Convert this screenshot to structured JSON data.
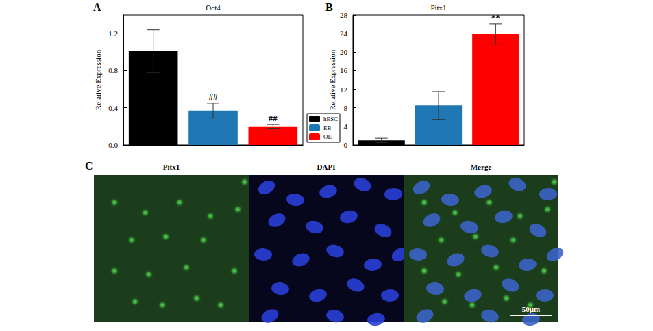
{
  "chart_data": [
    {
      "type": "bar",
      "panel": "A",
      "y_label": "Relative Expression",
      "categories": [
        "Oct4"
      ],
      "series": [
        {
          "name": "hESC",
          "color": "#000000",
          "values": [
            1.01
          ],
          "errors": [
            0.23
          ]
        },
        {
          "name": "EB",
          "color": "#1f77b4",
          "values": [
            0.37
          ],
          "errors": [
            0.08
          ]
        },
        {
          "name": "OE",
          "color": "#ff0000",
          "values": [
            0.2
          ],
          "errors": [
            0.02
          ]
        }
      ],
      "annotations": [
        {
          "series": "EB",
          "text": "##"
        },
        {
          "series": "OE",
          "text": "##"
        }
      ],
      "ylim": [
        0,
        1.4
      ],
      "yticks": [
        {
          "value": 0,
          "label": "0.0"
        },
        0.4,
        0.8,
        1.2
      ],
      "legend": "right"
    },
    {
      "type": "bar",
      "panel": "B",
      "y_label": "Relative Expression",
      "categories": [
        "Pitx1"
      ],
      "series": [
        {
          "name": "hESC",
          "color": "#000000",
          "values": [
            1.0
          ],
          "errors": [
            0.45
          ]
        },
        {
          "name": "EB",
          "color": "#1f77b4",
          "values": [
            8.5
          ],
          "errors": [
            3.0
          ]
        },
        {
          "name": "OE",
          "color": "#ff0000",
          "values": [
            23.9
          ],
          "errors": [
            2.2
          ]
        }
      ],
      "annotations": [
        {
          "series": "OE",
          "text": "**"
        }
      ],
      "ylim": [
        0,
        28
      ],
      "yticks": [
        0,
        4,
        8,
        12,
        16,
        20,
        24,
        28
      ]
    }
  ],
  "panel_c": {
    "panel": "C",
    "images": [
      {
        "title": "Pitx1"
      },
      {
        "title": "DAPI"
      },
      {
        "title": "Merge"
      }
    ],
    "scale_bar": "50μm"
  }
}
